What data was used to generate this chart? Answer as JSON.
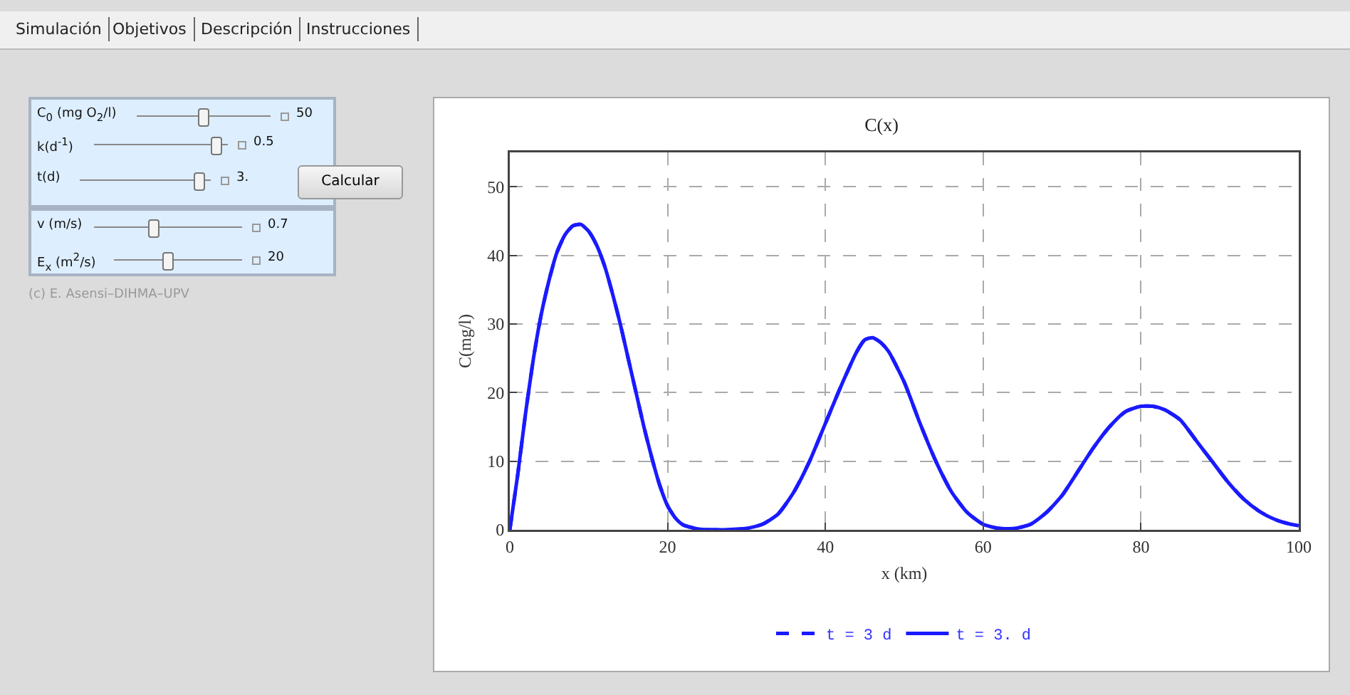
{
  "chart_data": {
    "type": "line",
    "title": "C(x)",
    "xlabel": "x (km)",
    "ylabel": "C(mg/l)",
    "x": [
      0,
      1,
      2,
      3,
      4,
      5,
      6,
      7,
      8,
      9,
      10,
      11,
      12,
      13,
      14,
      15,
      16,
      17,
      18,
      19,
      20,
      21,
      22,
      24,
      27,
      30,
      32,
      34,
      36,
      38,
      40,
      42,
      44,
      45,
      46,
      47,
      48,
      50,
      52,
      54,
      56,
      58,
      60,
      62,
      64,
      66,
      68,
      70,
      72,
      74,
      76,
      78,
      80,
      81.5,
      83,
      85,
      87,
      89,
      91,
      93,
      95,
      97,
      99,
      100
    ],
    "series": [
      {
        "name": "t = 3 d",
        "color": "#1a1aff",
        "line_style": "dashed",
        "values": [
          0,
          8,
          17,
          25,
          31.5,
          36.5,
          40.5,
          43,
          44.3,
          44.5,
          43.5,
          41.5,
          38.5,
          34.5,
          30,
          25,
          20,
          15,
          10.5,
          6.5,
          3.5,
          1.7,
          0.7,
          0.1,
          0,
          0.2,
          0.8,
          2.3,
          5.5,
          10,
          15.5,
          21,
          26,
          27.7,
          28,
          27.3,
          26,
          21.5,
          15.5,
          10,
          5.5,
          2.5,
          0.8,
          0.2,
          0.2,
          0.8,
          2.5,
          5,
          8.5,
          12,
          15,
          17.2,
          18,
          18,
          17.5,
          16,
          13,
          10,
          7,
          4.5,
          2.7,
          1.5,
          0.8,
          0.6
        ]
      },
      {
        "name": "t = 3. d",
        "color": "#1a1aff",
        "line_style": "solid",
        "values": [
          0,
          8,
          17,
          25,
          31.5,
          36.5,
          40.5,
          43,
          44.3,
          44.5,
          43.5,
          41.5,
          38.5,
          34.5,
          30,
          25,
          20,
          15,
          10.5,
          6.5,
          3.5,
          1.7,
          0.7,
          0.1,
          0,
          0.2,
          0.8,
          2.3,
          5.5,
          10,
          15.5,
          21,
          26,
          27.7,
          28,
          27.3,
          26,
          21.5,
          15.5,
          10,
          5.5,
          2.5,
          0.8,
          0.2,
          0.2,
          0.8,
          2.5,
          5,
          8.5,
          12,
          15,
          17.2,
          18,
          18,
          17.5,
          16,
          13,
          10,
          7,
          4.5,
          2.7,
          1.5,
          0.8,
          0.6
        ]
      }
    ],
    "xlim": [
      0,
      100
    ],
    "xticks": [
      0,
      20,
      40,
      60,
      80,
      100
    ],
    "ylim": [
      0,
      55
    ],
    "yticks": [
      0,
      10,
      20,
      30,
      40,
      50
    ],
    "grid": true,
    "legend": "bottom",
    "marker": "none",
    "annotations": [
      "Simulación",
      "Objetivos",
      "Descripción",
      "Instrucciones",
      "C$_{0}$ (mg O$_{2}$/l)",
      "50",
      "k(d$^{-1}$)",
      "0.5",
      "t(d)",
      "3.",
      "v (m/s)",
      "0.7",
      "E$_{x}$ (m$^{2}$/s)",
      "20",
      "Calcular",
      "(c) E. Asensi–DIHMA–UPV"
    ]
  }
}
